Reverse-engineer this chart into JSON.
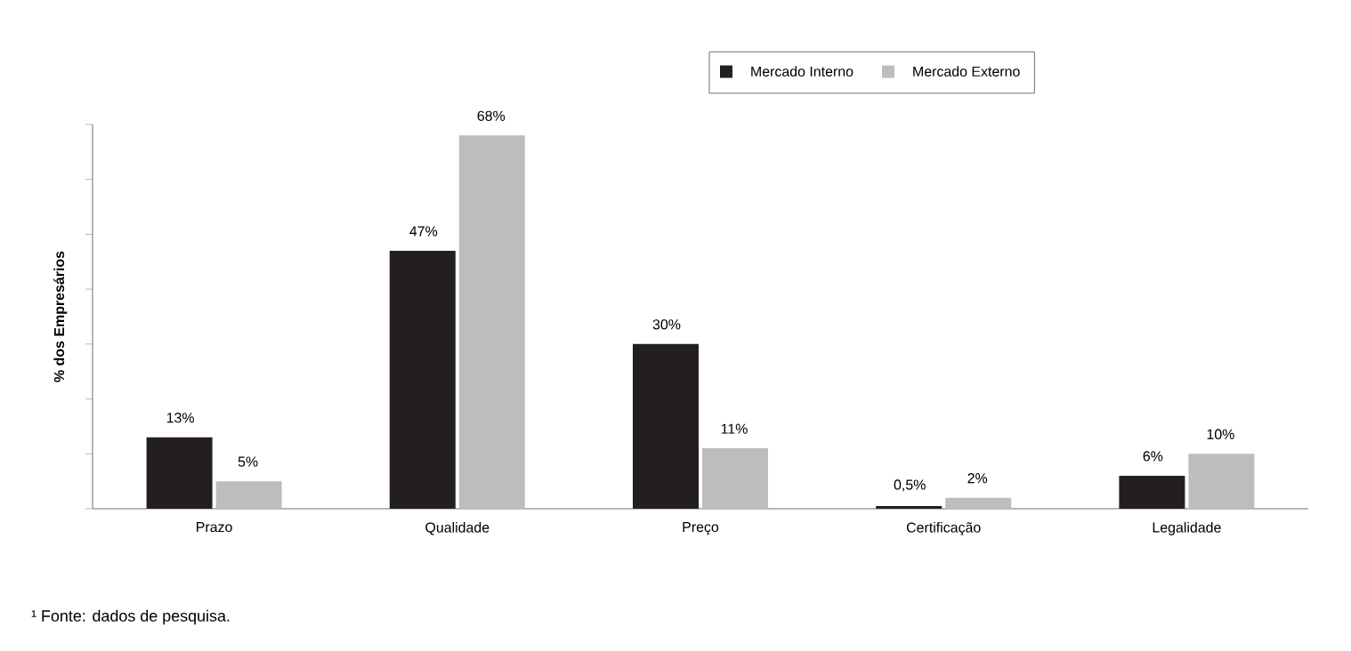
{
  "chart_data": {
    "type": "bar",
    "ylabel": "% dos Empresários",
    "categories": [
      "Prazo",
      "Qualidade",
      "Preço",
      "Certificação",
      "Legalidade"
    ],
    "series": [
      {
        "name": "Mercado Interno",
        "color": "#231f20",
        "values": [
          13,
          47,
          30,
          0.5,
          6
        ],
        "value_labels": [
          "13%",
          "47%",
          "30%",
          "0,5%",
          "6%"
        ]
      },
      {
        "name": "Mercado Externo",
        "color": "#bdbdbd",
        "values": [
          5,
          68,
          11,
          2,
          10
        ],
        "value_labels": [
          "5%",
          "68%",
          "11%",
          "2%",
          "10%"
        ]
      }
    ],
    "ylim": [
      0,
      70
    ],
    "yticks": [
      {
        "value": 0,
        "label": null
      },
      {
        "value": 10,
        "label": null
      },
      {
        "value": 20,
        "label": null
      },
      {
        "value": 30,
        "label": null
      },
      {
        "value": 40,
        "label": null
      },
      {
        "value": 50,
        "label": null
      },
      {
        "value": 60,
        "label": null
      },
      {
        "value": 70,
        "label": null
      }
    ],
    "tick_labels": "x",
    "grid": false,
    "legend": "top right",
    "annotations": [
      "¹ Fonte: dados de pesquisa."
    ]
  }
}
